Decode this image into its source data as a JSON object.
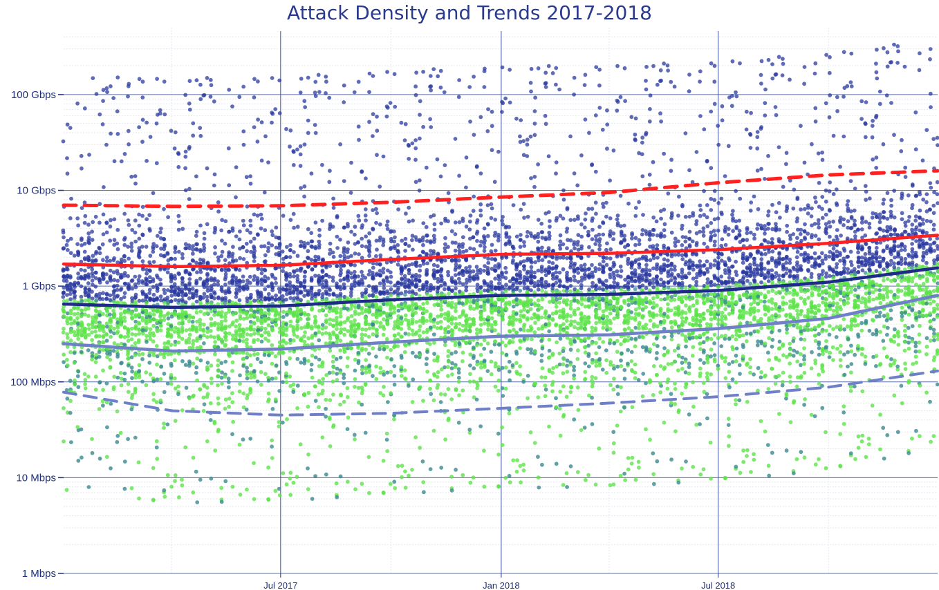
{
  "chart_data": {
    "type": "scatter",
    "title": "Attack Density and Trends 2017-2018",
    "xlabel": "",
    "ylabel": "",
    "y_scale": "log",
    "y_unit": "bps",
    "xlim": [
      "2017-01-01",
      "2018-12-31"
    ],
    "ylim": [
      1000000,
      500000000000
    ],
    "y_ticks": [
      {
        "value": 1000000,
        "label": "1 Mbps"
      },
      {
        "value": 10000000,
        "label": "10 Mbps"
      },
      {
        "value": 100000000,
        "label": "100 Mbps"
      },
      {
        "value": 1000000000,
        "label": "1 Gbps"
      },
      {
        "value": 10000000000,
        "label": "10 Gbps"
      },
      {
        "value": 100000000000,
        "label": "100 Gbps"
      }
    ],
    "x_ticks": [
      {
        "value": "2017-07-01",
        "label": "Jul 2017"
      },
      {
        "value": "2018-01-01",
        "label": "Jan 2018"
      },
      {
        "value": "2018-07-01",
        "label": "Jul 2018"
      }
    ],
    "grid": true,
    "legend": "none",
    "colors": {
      "dense_points": "#2b3aa0",
      "light_points": "#5ee34a",
      "mid_points": "#3a8a90",
      "upper_dashed": "#ff2020",
      "upper_solid": "#ff2020",
      "mid_solid": "#1f2a8a",
      "low_solid": "#6f80c8",
      "low_dashed": "#6f80c8",
      "grid": "#cfd6e6",
      "axis_text": "#1e2f7a"
    },
    "series": [
      {
        "style": "dashed",
        "color_key": "upper_dashed",
        "x": [
          "2017-01-01",
          "2017-04-01",
          "2017-07-01",
          "2017-10-01",
          "2018-01-01",
          "2018-04-01",
          "2018-07-01",
          "2018-10-01",
          "2018-12-31"
        ],
        "y": [
          7000000000,
          6800000000,
          6900000000,
          7500000000,
          8500000000,
          9500000000,
          12000000000,
          14500000000,
          16000000000
        ]
      },
      {
        "style": "solid",
        "color_key": "upper_solid",
        "x": [
          "2017-01-01",
          "2017-04-01",
          "2017-07-01",
          "2017-10-01",
          "2018-01-01",
          "2018-04-01",
          "2018-07-01",
          "2018-10-01",
          "2018-12-31"
        ],
        "y": [
          1700000000,
          1600000000,
          1650000000,
          1900000000,
          2150000000,
          2200000000,
          2400000000,
          2800000000,
          3400000000
        ]
      },
      {
        "style": "solid",
        "color_key": "mid_solid",
        "x": [
          "2017-01-01",
          "2017-04-01",
          "2017-07-01",
          "2017-10-01",
          "2018-01-01",
          "2018-04-01",
          "2018-07-01",
          "2018-10-01",
          "2018-12-31"
        ],
        "y": [
          650000000,
          600000000,
          620000000,
          720000000,
          800000000,
          820000000,
          900000000,
          1100000000,
          1550000000
        ]
      },
      {
        "style": "solid",
        "color_key": "low_solid",
        "x": [
          "2017-01-01",
          "2017-04-01",
          "2017-07-01",
          "2017-10-01",
          "2018-01-01",
          "2018-04-01",
          "2018-07-01",
          "2018-10-01",
          "2018-12-31"
        ],
        "y": [
          250000000,
          210000000,
          220000000,
          260000000,
          300000000,
          310000000,
          360000000,
          460000000,
          800000000
        ]
      },
      {
        "style": "dashed",
        "color_key": "low_dashed",
        "x": [
          "2017-01-01",
          "2017-04-01",
          "2017-07-01",
          "2017-10-01",
          "2018-01-01",
          "2018-04-01",
          "2018-07-01",
          "2018-10-01",
          "2018-12-31"
        ],
        "y": [
          78000000,
          50000000,
          45000000,
          47000000,
          53000000,
          60000000,
          70000000,
          88000000,
          130000000
        ]
      }
    ]
  }
}
